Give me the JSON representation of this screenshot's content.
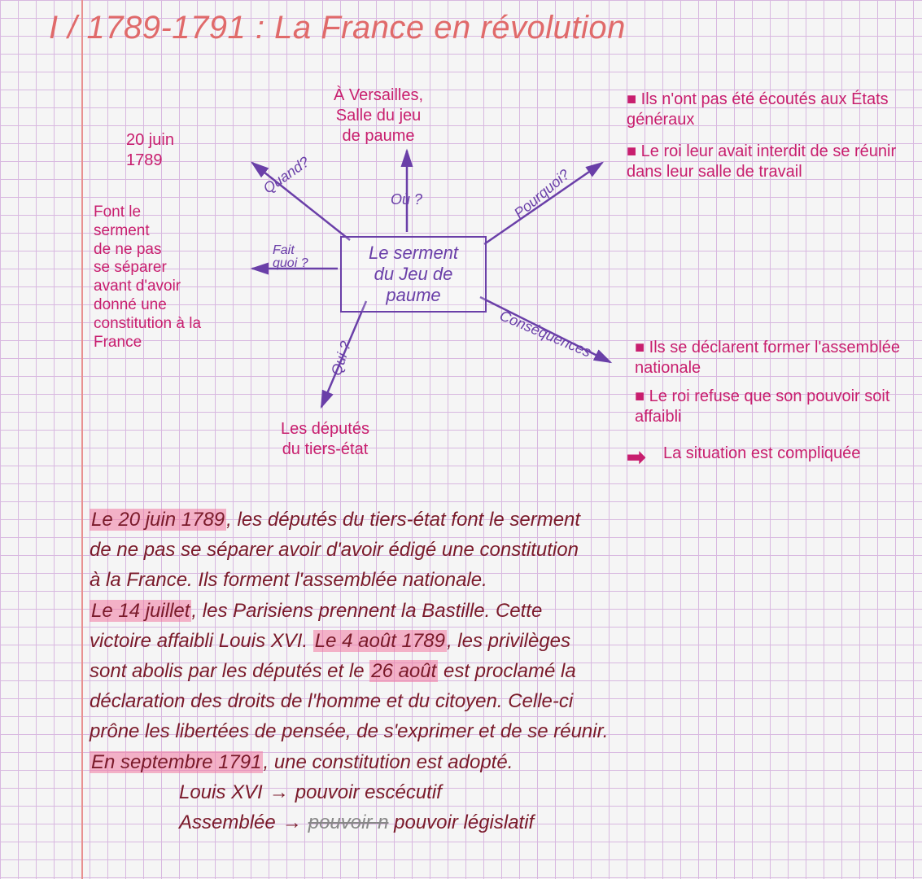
{
  "colors": {
    "title": "#e06a6a",
    "purple": "#6a3fa8",
    "pink": "#c81e6e",
    "darkred": "#7a1a2a",
    "highlight": "rgba(240,120,160,0.55)",
    "grid": "#d8b8e0",
    "margin": "#e89090"
  },
  "title": "I / 1789-1791 : La France en révolution",
  "mindmap": {
    "center": "Le serment\ndu Jeu de\npaume",
    "branches": {
      "quand": {
        "label": "Quand?",
        "text": "20 juin\n1789"
      },
      "ou": {
        "label": "Où ?",
        "text": "À Versailles,\nSalle du jeu\nde paume"
      },
      "pourquoi": {
        "label": "Pourquoi?",
        "items": [
          "Ils n'ont pas été écoutés aux États généraux",
          "Le roi leur avait interdit de se réunir dans leur salle de travail"
        ]
      },
      "fait_quoi": {
        "label": "Fait\nquoi ?",
        "text": "Font le\nserment\nde ne pas\nse séparer\navant d'avoir\ndonné une\nconstitution à la\nFrance"
      },
      "qui": {
        "label": "Qui ?",
        "text": "Les députés\ndu tiers-état"
      },
      "consequences": {
        "label": "Conséquences",
        "items": [
          "Ils se déclarent former l'assemblée nationale",
          "Le roi refuse que son pouvoir soit affaibli"
        ],
        "conclusion": "La situation est compliquée"
      }
    }
  },
  "paragraph": {
    "lines": [
      {
        "parts": [
          {
            "t": "Le 20 juin 1789",
            "hl": true
          },
          {
            "t": ", les députés du tiers-état font le serment"
          }
        ]
      },
      {
        "parts": [
          {
            "t": "de ne pas se séparer avoir d'avoir édigé une constitution"
          }
        ]
      },
      {
        "parts": [
          {
            "t": "à la France. Ils forment l'assemblée nationale."
          }
        ]
      },
      {
        "parts": [
          {
            "t": "Le 14 juillet",
            "hl": true
          },
          {
            "t": ", les Parisiens prennent la Bastille. Cette"
          }
        ]
      },
      {
        "parts": [
          {
            "t": "victoire affaibli Louis XVI. "
          },
          {
            "t": "Le 4 août 1789",
            "hl": true
          },
          {
            "t": ", les privilèges"
          }
        ]
      },
      {
        "parts": [
          {
            "t": "sont abolis par les députés et le "
          },
          {
            "t": "26 août",
            "hl": true
          },
          {
            "t": " est proclamé la"
          }
        ]
      },
      {
        "parts": [
          {
            "t": "déclaration des droits de l'homme et du citoyen. Celle-ci"
          }
        ]
      },
      {
        "parts": [
          {
            "t": "prône les libertées de pensée, de s'exprimer et de se réunir."
          }
        ]
      },
      {
        "parts": [
          {
            "t": "En septembre 1791",
            "hl": true
          },
          {
            "t": ", une constitution est adopté."
          }
        ]
      }
    ],
    "footer": [
      {
        "left": "Louis XVI",
        "right": "pouvoir escécutif"
      },
      {
        "left": "Assemblée",
        "right": "pouvoir législatif",
        "scratch": "pouvoir n"
      }
    ]
  }
}
